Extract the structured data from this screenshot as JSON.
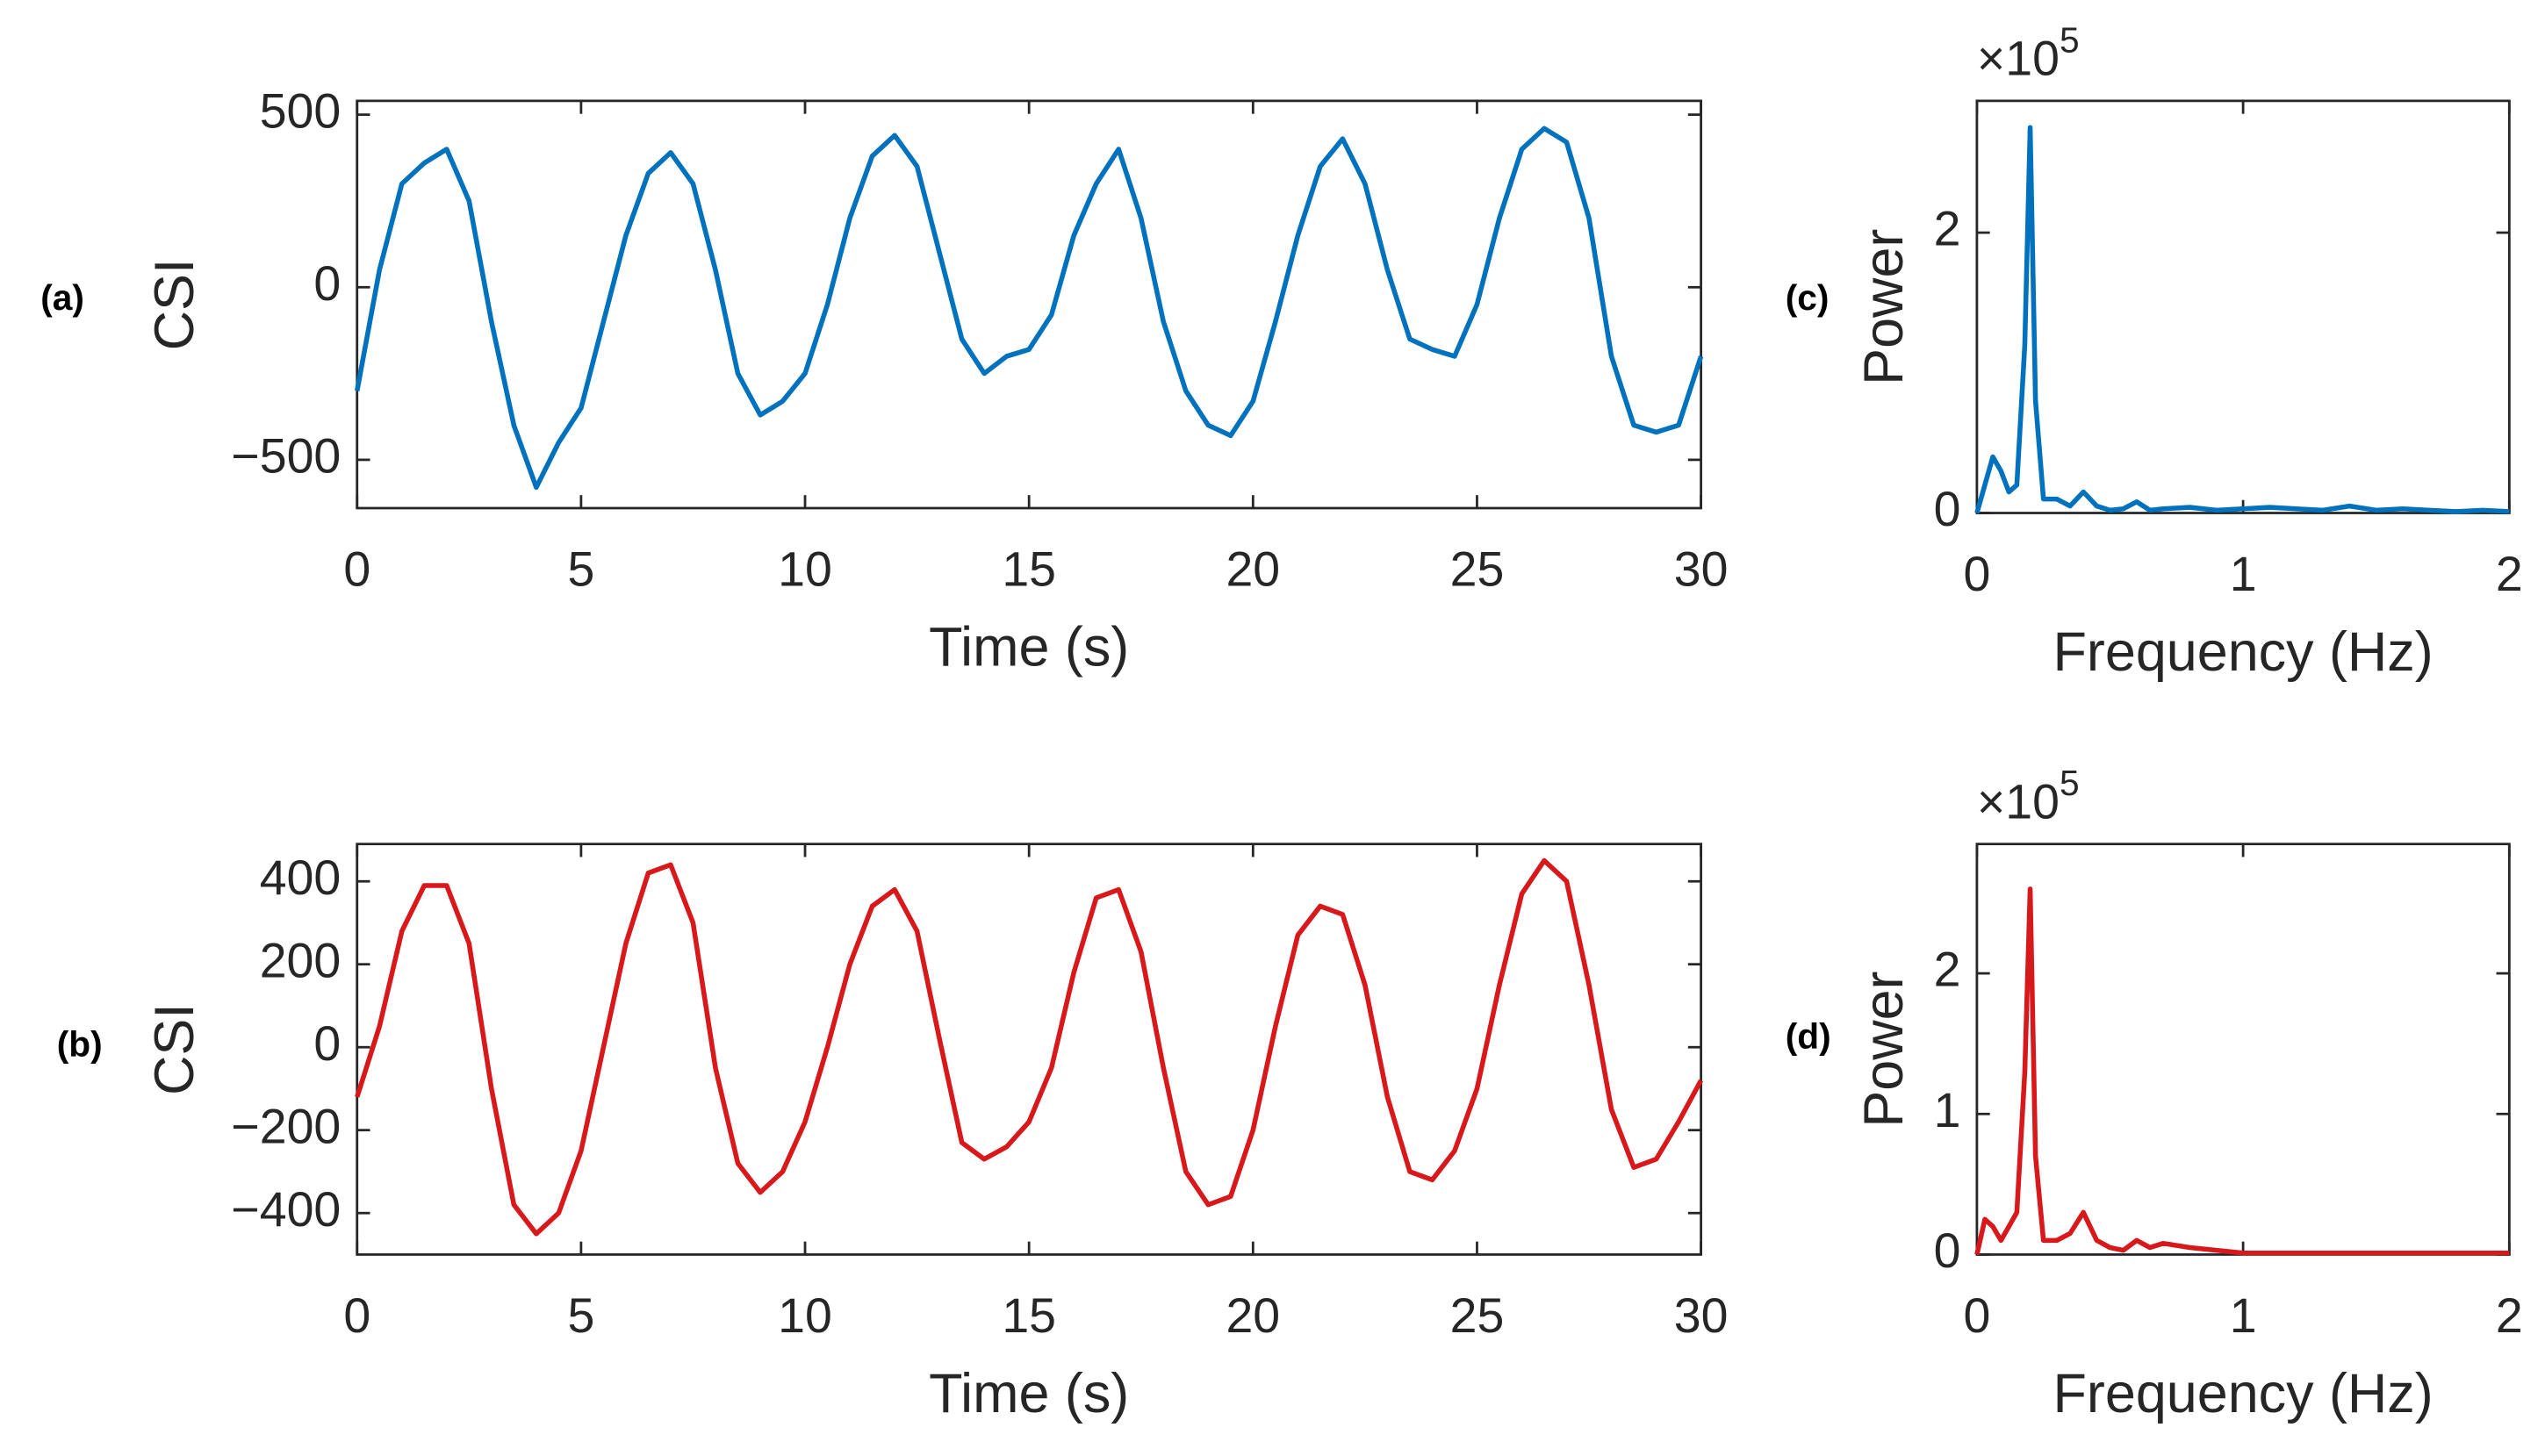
{
  "chart_data": [
    {
      "type": "line",
      "panel_label": "(a)",
      "x_label": "Time (s)",
      "y_label": "CSI",
      "color": "#0072bd",
      "x": [
        0,
        0.5,
        1,
        1.5,
        2,
        2.5,
        3,
        3.5,
        4,
        4.5,
        5,
        5.5,
        6,
        6.5,
        7,
        7.5,
        8,
        8.5,
        9,
        9.5,
        10,
        10.5,
        11,
        11.5,
        12,
        12.5,
        13,
        13.5,
        14,
        14.5,
        15,
        15.5,
        16,
        16.5,
        17,
        17.5,
        18,
        18.5,
        19,
        19.5,
        20,
        20.5,
        21,
        21.5,
        22,
        22.5,
        23,
        23.5,
        24,
        24.5,
        25,
        25.5,
        26,
        26.5,
        27,
        27.5,
        28,
        28.5,
        29,
        29.5,
        30
      ],
      "values": [
        -300,
        50,
        300,
        360,
        400,
        250,
        -100,
        -400,
        -580,
        -450,
        -350,
        -100,
        150,
        330,
        390,
        300,
        50,
        -250,
        -370,
        -330,
        -250,
        -50,
        200,
        380,
        440,
        350,
        100,
        -150,
        -250,
        -200,
        -180,
        -80,
        150,
        300,
        400,
        200,
        -100,
        -300,
        -400,
        -430,
        -330,
        -100,
        150,
        350,
        430,
        300,
        50,
        -150,
        -180,
        -200,
        -50,
        200,
        400,
        460,
        420,
        200,
        -200,
        -400,
        -420,
        -400,
        -200
      ],
      "xlim": [
        0,
        30
      ],
      "xticks": [
        0,
        5,
        10,
        15,
        20,
        25,
        30
      ],
      "ylim": [
        -640,
        540
      ],
      "yticks": [
        {
          "value": -500,
          "label": "−500"
        },
        0,
        500
      ]
    },
    {
      "type": "line",
      "panel_label": "(b)",
      "x_label": "Time (s)",
      "y_label": "CSI",
      "color": "#d7191c",
      "x": [
        0,
        0.5,
        1,
        1.5,
        2,
        2.5,
        3,
        3.5,
        4,
        4.5,
        5,
        5.5,
        6,
        6.5,
        7,
        7.5,
        8,
        8.5,
        9,
        9.5,
        10,
        10.5,
        11,
        11.5,
        12,
        12.5,
        13,
        13.5,
        14,
        14.5,
        15,
        15.5,
        16,
        16.5,
        17,
        17.5,
        18,
        18.5,
        19,
        19.5,
        20,
        20.5,
        21,
        21.5,
        22,
        22.5,
        23,
        23.5,
        24,
        24.5,
        25,
        25.5,
        26,
        26.5,
        27,
        27.5,
        28,
        28.5,
        29,
        29.5,
        30
      ],
      "values": [
        -120,
        50,
        280,
        390,
        390,
        250,
        -100,
        -380,
        -450,
        -400,
        -250,
        0,
        250,
        420,
        440,
        300,
        -50,
        -280,
        -350,
        -300,
        -180,
        0,
        200,
        340,
        380,
        280,
        20,
        -230,
        -270,
        -240,
        -180,
        -50,
        180,
        360,
        380,
        230,
        -50,
        -300,
        -380,
        -360,
        -200,
        50,
        270,
        340,
        320,
        150,
        -120,
        -300,
        -320,
        -250,
        -100,
        150,
        370,
        450,
        400,
        150,
        -150,
        -290,
        -270,
        -180,
        -80
      ],
      "xlim": [
        0,
        30
      ],
      "xticks": [
        0,
        5,
        10,
        15,
        20,
        25,
        30
      ],
      "ylim": [
        -500,
        490
      ],
      "yticks": [
        {
          "value": -400,
          "label": "−400"
        },
        {
          "value": -200,
          "label": "−200"
        },
        0,
        200,
        400
      ]
    },
    {
      "type": "line",
      "panel_label": "(c)",
      "x_label": "Frequency (Hz)",
      "y_label": "Power",
      "color": "#0072bd",
      "multiplier": "×10",
      "multiplier_exponent": "5",
      "x": [
        0,
        0.03,
        0.06,
        0.09,
        0.12,
        0.15,
        0.18,
        0.2,
        0.22,
        0.25,
        0.3,
        0.35,
        0.4,
        0.45,
        0.5,
        0.55,
        0.6,
        0.65,
        0.7,
        0.8,
        0.9,
        1.0,
        1.1,
        1.2,
        1.3,
        1.4,
        1.5,
        1.6,
        1.7,
        1.8,
        1.9,
        2.0
      ],
      "values": [
        0,
        0.2,
        0.4,
        0.3,
        0.15,
        0.2,
        1.2,
        2.75,
        0.8,
        0.1,
        0.1,
        0.05,
        0.15,
        0.05,
        0.02,
        0.03,
        0.08,
        0.02,
        0.03,
        0.04,
        0.02,
        0.03,
        0.04,
        0.03,
        0.02,
        0.05,
        0.02,
        0.03,
        0.02,
        0.01,
        0.02,
        0.01
      ],
      "xlim": [
        0,
        2
      ],
      "xticks": [
        0,
        1,
        2
      ],
      "ylim": [
        0,
        2.94
      ],
      "yticks": [
        0,
        2
      ]
    },
    {
      "type": "line",
      "panel_label": "(d)",
      "x_label": "Frequency (Hz)",
      "y_label": "Power",
      "color": "#d7191c",
      "multiplier": "×10",
      "multiplier_exponent": "5",
      "x": [
        0,
        0.03,
        0.06,
        0.09,
        0.12,
        0.15,
        0.18,
        0.2,
        0.22,
        0.25,
        0.3,
        0.35,
        0.4,
        0.45,
        0.5,
        0.55,
        0.6,
        0.65,
        0.7,
        0.8,
        0.9,
        1.0,
        1.1,
        1.2,
        1.3,
        1.4,
        1.5,
        1.6,
        1.7,
        1.8,
        1.9,
        2.0
      ],
      "values": [
        0,
        0.25,
        0.2,
        0.1,
        0.2,
        0.3,
        1.3,
        2.6,
        0.7,
        0.1,
        0.1,
        0.15,
        0.3,
        0.1,
        0.05,
        0.03,
        0.1,
        0.05,
        0.08,
        0.05,
        0.03,
        0.01,
        0.01,
        0.01,
        0.01,
        0.01,
        0.01,
        0.01,
        0.01,
        0.01,
        0.01,
        0.01
      ],
      "xlim": [
        0,
        2
      ],
      "xticks": [
        0,
        1,
        2
      ],
      "ylim": [
        0,
        2.92
      ],
      "yticks": [
        0,
        1,
        2
      ]
    }
  ]
}
